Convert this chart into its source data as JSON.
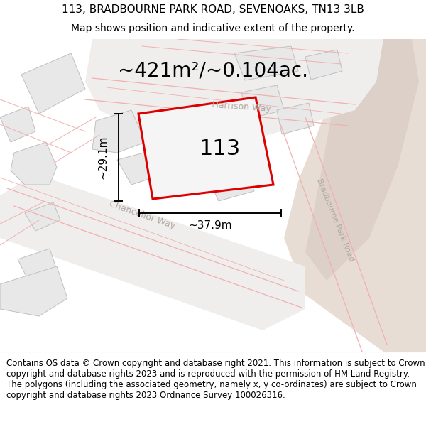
{
  "title_line1": "113, BRADBOURNE PARK ROAD, SEVENOAKS, TN13 3LB",
  "title_line2": "Map shows position and indicative extent of the property.",
  "area_text": "~421m²/~0.104ac.",
  "property_number": "113",
  "dim_width": "~37.9m",
  "dim_height": "~29.1m",
  "footer_text": "Contains OS data © Crown copyright and database right 2021. This information is subject to Crown copyright and database rights 2023 and is reproduced with the permission of HM Land Registry. The polygons (including the associated geometry, namely x, y co-ordinates) are subject to Crown copyright and database rights 2023 Ordnance Survey 100026316.",
  "map_bg": "#ffffff",
  "road_surface": "#f5f5f5",
  "block_fill": "#e8e8e8",
  "block_edge": "#c0c0c0",
  "red_outline": "#dd0000",
  "road_line_color": "#f0b0b0",
  "road_line_color2": "#e89090",
  "tan_area": "#e8ddd5",
  "tan_area2": "#ddd0c8",
  "harrison_way_label": "Harrison Way",
  "chancellor_way_label": "Chancellor Way",
  "bradbourne_road_label": "Bradbourne Park Road",
  "road_label_color": "#b0a8a0",
  "title_fontsize": 11,
  "subtitle_fontsize": 10,
  "area_fontsize": 20,
  "number_fontsize": 22,
  "dim_fontsize": 11,
  "footer_fontsize": 8.5,
  "road_label_fontsize": 9
}
